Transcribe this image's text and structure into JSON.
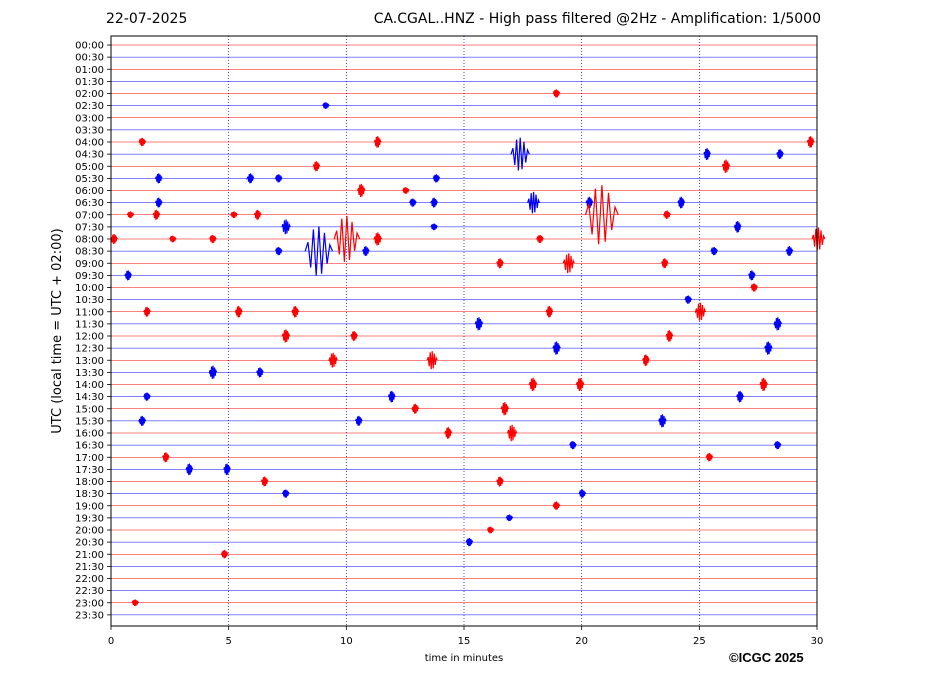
{
  "header": {
    "date": "22-07-2025",
    "title": "CA.CGAL..HNZ - High pass filtered @2Hz - Amplification: 1/5000"
  },
  "copyright": "©ICGC 2025",
  "colors": {
    "trace_a": "#ff0000",
    "trace_b": "#0000ff",
    "frame": "#000000",
    "grid": "#0000aa"
  },
  "chart_data": {
    "type": "line",
    "title": "CA.CGAL..HNZ - High pass filtered @2Hz - Amplification: 1/5000",
    "xlabel": "time in minutes",
    "ylabel": "UTC (local time = UTC + 02:00)",
    "xlim": [
      0,
      30
    ],
    "xticks": [
      0,
      5,
      10,
      15,
      20,
      25,
      30
    ],
    "vertical_gridlines": [
      5,
      10,
      15,
      20,
      25
    ],
    "row_labels": [
      "00:00",
      "00:30",
      "01:00",
      "01:30",
      "02:00",
      "02:30",
      "03:00",
      "03:30",
      "04:00",
      "04:30",
      "05:00",
      "05:30",
      "06:00",
      "06:30",
      "07:00",
      "07:30",
      "08:00",
      "08:30",
      "09:00",
      "09:30",
      "10:00",
      "10:30",
      "11:00",
      "11:30",
      "12:00",
      "12:30",
      "13:00",
      "13:30",
      "14:00",
      "14:30",
      "15:00",
      "15:30",
      "16:00",
      "16:30",
      "17:00",
      "17:30",
      "18:00",
      "18:30",
      "19:00",
      "19:30",
      "20:00",
      "20:30",
      "21:00",
      "21:30",
      "22:00",
      "22:30",
      "23:00",
      "23:30"
    ],
    "trace_colors_alternating": [
      "#ff0000",
      "#0000ff"
    ],
    "events": [
      {
        "row": "02:00",
        "minute": 18.9,
        "amp": 5
      },
      {
        "row": "02:30",
        "minute": 9.1,
        "amp": 4
      },
      {
        "row": "04:00",
        "minute": 1.3,
        "amp": 5
      },
      {
        "row": "04:00",
        "minute": 11.3,
        "amp": 7
      },
      {
        "row": "04:00",
        "minute": 29.7,
        "amp": 7
      },
      {
        "row": "04:30",
        "minute": 17.3,
        "amp": 20
      },
      {
        "row": "04:30",
        "minute": 25.3,
        "amp": 7
      },
      {
        "row": "04:30",
        "minute": 28.4,
        "amp": 6
      },
      {
        "row": "05:00",
        "minute": 8.7,
        "amp": 6
      },
      {
        "row": "05:00",
        "minute": 26.1,
        "amp": 8
      },
      {
        "row": "05:30",
        "minute": 2.0,
        "amp": 6
      },
      {
        "row": "05:30",
        "minute": 5.9,
        "amp": 6
      },
      {
        "row": "05:30",
        "minute": 7.1,
        "amp": 5
      },
      {
        "row": "05:30",
        "minute": 13.8,
        "amp": 5
      },
      {
        "row": "06:00",
        "minute": 10.6,
        "amp": 8
      },
      {
        "row": "06:00",
        "minute": 12.5,
        "amp": 4
      },
      {
        "row": "06:30",
        "minute": 2.0,
        "amp": 6
      },
      {
        "row": "06:30",
        "minute": 12.8,
        "amp": 5
      },
      {
        "row": "06:30",
        "minute": 13.7,
        "amp": 6
      },
      {
        "row": "06:30",
        "minute": 17.9,
        "amp": 13
      },
      {
        "row": "06:30",
        "minute": 20.3,
        "amp": 7
      },
      {
        "row": "06:30",
        "minute": 24.2,
        "amp": 7
      },
      {
        "row": "07:00",
        "minute": 0.8,
        "amp": 4
      },
      {
        "row": "07:00",
        "minute": 1.9,
        "amp": 6
      },
      {
        "row": "07:00",
        "minute": 5.2,
        "amp": 4
      },
      {
        "row": "07:00",
        "minute": 6.2,
        "amp": 6
      },
      {
        "row": "07:00",
        "minute": 20.7,
        "amp": 36
      },
      {
        "row": "07:00",
        "minute": 23.6,
        "amp": 5
      },
      {
        "row": "07:30",
        "minute": 7.4,
        "amp": 9
      },
      {
        "row": "07:30",
        "minute": 13.7,
        "amp": 4
      },
      {
        "row": "07:30",
        "minute": 26.6,
        "amp": 7
      },
      {
        "row": "08:00",
        "minute": 0.1,
        "amp": 6
      },
      {
        "row": "08:00",
        "minute": 2.6,
        "amp": 4
      },
      {
        "row": "08:00",
        "minute": 4.3,
        "amp": 5
      },
      {
        "row": "08:00",
        "minute": 9.9,
        "amp": 28
      },
      {
        "row": "08:00",
        "minute": 11.3,
        "amp": 8
      },
      {
        "row": "08:00",
        "minute": 18.2,
        "amp": 5
      },
      {
        "row": "08:00",
        "minute": 30.0,
        "amp": 14
      },
      {
        "row": "08:30",
        "minute": 7.1,
        "amp": 5
      },
      {
        "row": "08:30",
        "minute": 8.7,
        "amp": 30
      },
      {
        "row": "08:30",
        "minute": 10.8,
        "amp": 6
      },
      {
        "row": "08:30",
        "minute": 25.6,
        "amp": 5
      },
      {
        "row": "08:30",
        "minute": 28.8,
        "amp": 6
      },
      {
        "row": "09:00",
        "minute": 16.5,
        "amp": 6
      },
      {
        "row": "09:00",
        "minute": 19.4,
        "amp": 12
      },
      {
        "row": "09:00",
        "minute": 23.5,
        "amp": 6
      },
      {
        "row": "09:30",
        "minute": 0.7,
        "amp": 6
      },
      {
        "row": "09:30",
        "minute": 27.2,
        "amp": 6
      },
      {
        "row": "10:00",
        "minute": 27.3,
        "amp": 5
      },
      {
        "row": "10:30",
        "minute": 24.5,
        "amp": 5
      },
      {
        "row": "11:00",
        "minute": 1.5,
        "amp": 6
      },
      {
        "row": "11:00",
        "minute": 5.4,
        "amp": 7
      },
      {
        "row": "11:00",
        "minute": 7.8,
        "amp": 7
      },
      {
        "row": "11:00",
        "minute": 18.6,
        "amp": 7
      },
      {
        "row": "11:00",
        "minute": 25.0,
        "amp": 11
      },
      {
        "row": "11:30",
        "minute": 15.6,
        "amp": 8
      },
      {
        "row": "11:30",
        "minute": 28.3,
        "amp": 8
      },
      {
        "row": "12:00",
        "minute": 7.4,
        "amp": 8
      },
      {
        "row": "12:00",
        "minute": 10.3,
        "amp": 6
      },
      {
        "row": "12:00",
        "minute": 23.7,
        "amp": 7
      },
      {
        "row": "12:30",
        "minute": 18.9,
        "amp": 8
      },
      {
        "row": "12:30",
        "minute": 27.9,
        "amp": 8
      },
      {
        "row": "13:00",
        "minute": 9.4,
        "amp": 9
      },
      {
        "row": "13:00",
        "minute": 13.6,
        "amp": 11
      },
      {
        "row": "13:00",
        "minute": 22.7,
        "amp": 7
      },
      {
        "row": "13:30",
        "minute": 4.3,
        "amp": 8
      },
      {
        "row": "13:30",
        "minute": 6.3,
        "amp": 6
      },
      {
        "row": "14:00",
        "minute": 17.9,
        "amp": 8
      },
      {
        "row": "14:00",
        "minute": 19.9,
        "amp": 8
      },
      {
        "row": "14:00",
        "minute": 27.7,
        "amp": 8
      },
      {
        "row": "14:30",
        "minute": 1.5,
        "amp": 5
      },
      {
        "row": "14:30",
        "minute": 11.9,
        "amp": 7
      },
      {
        "row": "14:30",
        "minute": 26.7,
        "amp": 7
      },
      {
        "row": "15:00",
        "minute": 12.9,
        "amp": 6
      },
      {
        "row": "15:00",
        "minute": 16.7,
        "amp": 8
      },
      {
        "row": "15:30",
        "minute": 1.3,
        "amp": 6
      },
      {
        "row": "15:30",
        "minute": 10.5,
        "amp": 6
      },
      {
        "row": "15:30",
        "minute": 23.4,
        "amp": 8
      },
      {
        "row": "16:00",
        "minute": 14.3,
        "amp": 7
      },
      {
        "row": "16:00",
        "minute": 17.0,
        "amp": 10
      },
      {
        "row": "16:30",
        "minute": 19.6,
        "amp": 5
      },
      {
        "row": "16:30",
        "minute": 28.3,
        "amp": 5
      },
      {
        "row": "17:00",
        "minute": 2.3,
        "amp": 6
      },
      {
        "row": "17:00",
        "minute": 25.4,
        "amp": 5
      },
      {
        "row": "17:30",
        "minute": 3.3,
        "amp": 7
      },
      {
        "row": "17:30",
        "minute": 4.9,
        "amp": 7
      },
      {
        "row": "18:00",
        "minute": 6.5,
        "amp": 6
      },
      {
        "row": "18:00",
        "minute": 16.5,
        "amp": 6
      },
      {
        "row": "18:30",
        "minute": 7.4,
        "amp": 5
      },
      {
        "row": "18:30",
        "minute": 20.0,
        "amp": 5
      },
      {
        "row": "19:00",
        "minute": 18.9,
        "amp": 5
      },
      {
        "row": "19:30",
        "minute": 16.9,
        "amp": 4
      },
      {
        "row": "20:00",
        "minute": 16.1,
        "amp": 4
      },
      {
        "row": "20:30",
        "minute": 15.2,
        "amp": 5
      },
      {
        "row": "21:00",
        "minute": 4.8,
        "amp": 5
      },
      {
        "row": "23:00",
        "minute": 1.0,
        "amp": 4
      }
    ]
  }
}
